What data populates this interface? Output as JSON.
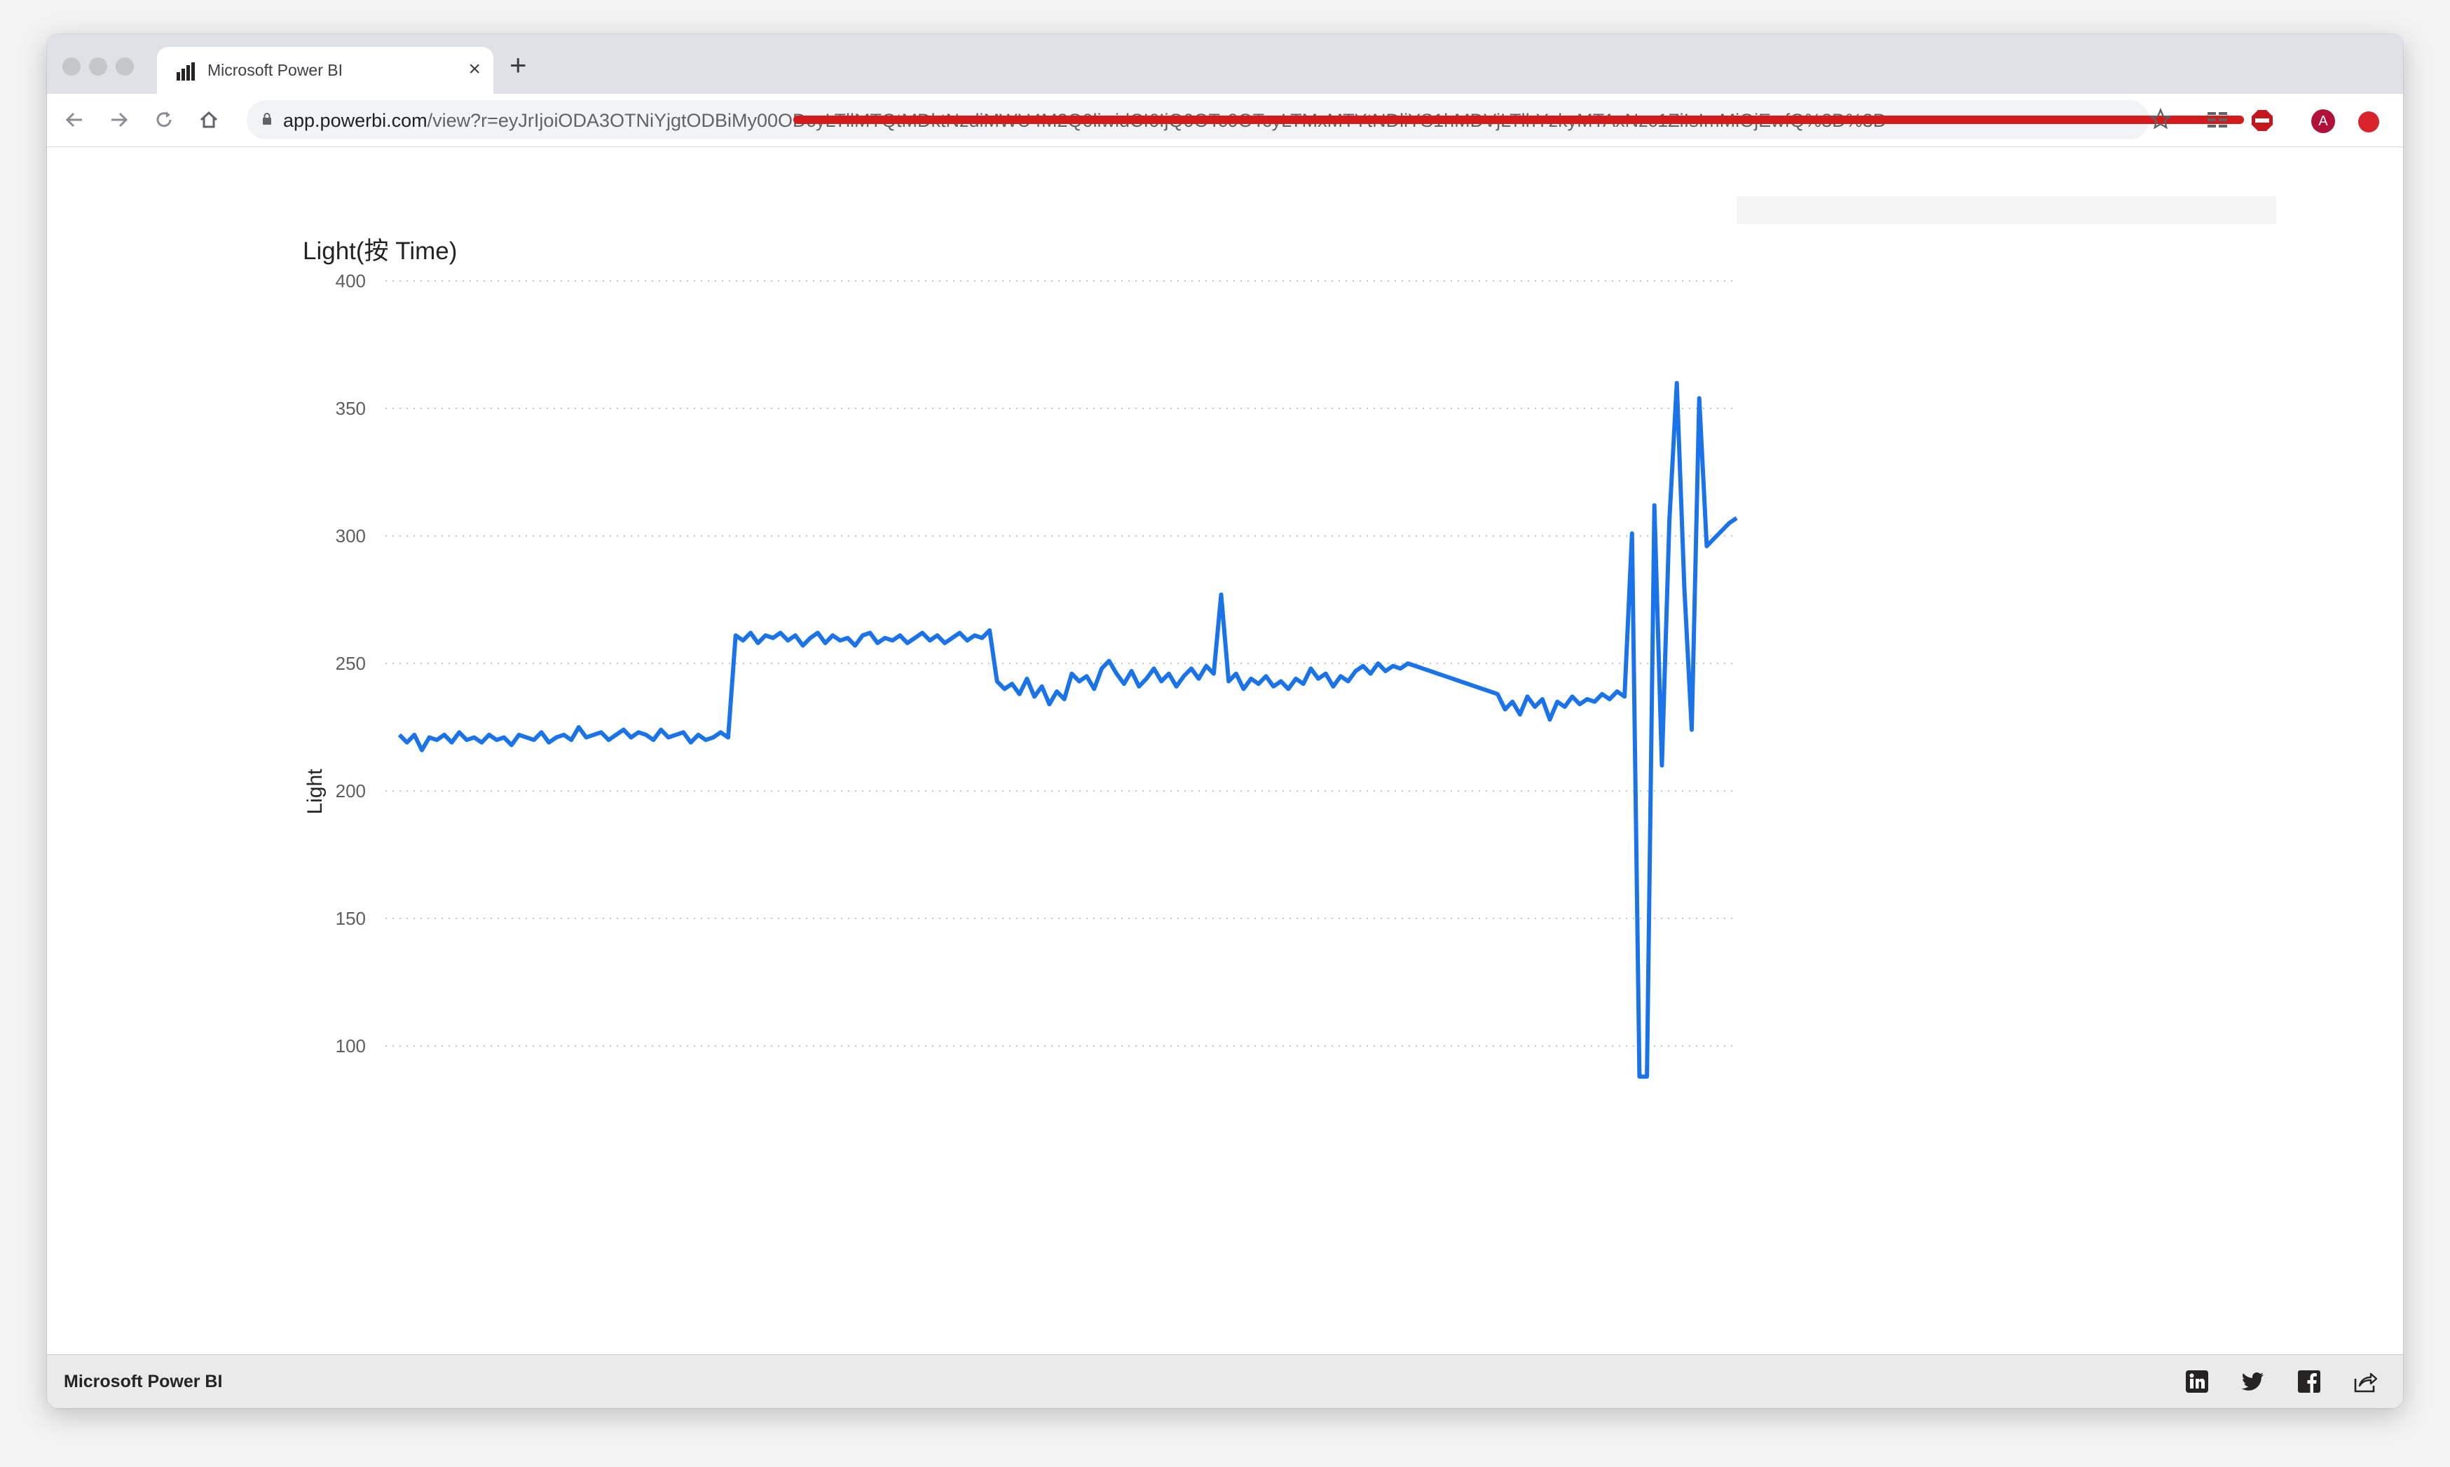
{
  "browser": {
    "tab_title": "Microsoft Power BI",
    "url_host": "app.powerbi.com",
    "url_path": "/view?r=eyJrIjoiODA3OTNiYjgtODBiMy00ODcyLTllMTQtMDktNzdiMWU4M2Q0liwidCI6IjQ0OTc0OTcyLTMxMTYtNDliYS1hMDVjLTlhYzkyMTAxNzc1ZiIsImMiOjEwfQ%3D%3D",
    "new_tab_symbol": "+",
    "close_symbol": "×",
    "avatar_letter": "A"
  },
  "footer": {
    "brand": "Microsoft Power BI"
  },
  "chart_data": {
    "type": "line",
    "title": "Light(按 Time)",
    "xlabel": "",
    "ylabel": "Light",
    "ylim": [
      100,
      400
    ],
    "yticks": [
      100,
      150,
      200,
      250,
      300,
      350,
      400
    ],
    "grid": true,
    "series_color": "#1a73e8",
    "series": [
      {
        "values": [
          222,
          219,
          222,
          216,
          221,
          220,
          222,
          219,
          223,
          220,
          221,
          219,
          222,
          220,
          221,
          218,
          222,
          221,
          220,
          223,
          219,
          221,
          222,
          220,
          225,
          221,
          222,
          223,
          220,
          222,
          224,
          221,
          223,
          222,
          220,
          224,
          221,
          222,
          223,
          219,
          222,
          220,
          221,
          223,
          221,
          261,
          259,
          262,
          258,
          261,
          260,
          262,
          259,
          261,
          257,
          260,
          262,
          258,
          261,
          259,
          260,
          257,
          261,
          262,
          258,
          260,
          259,
          261,
          258,
          260,
          262,
          259,
          261,
          258,
          260,
          262,
          259,
          261,
          260,
          263,
          243,
          240,
          242,
          238,
          244,
          237,
          241,
          234,
          239,
          236,
          246,
          243,
          245,
          240,
          248,
          251,
          246,
          242,
          247,
          241,
          244,
          248,
          243,
          246,
          241,
          245,
          248,
          244,
          249,
          246,
          277,
          243,
          246,
          240,
          244,
          242,
          245,
          241,
          243,
          240,
          244,
          242,
          248,
          244,
          246,
          241,
          245,
          243,
          247,
          249,
          246,
          250,
          247,
          249,
          248,
          250,
          249,
          248,
          247,
          246,
          245,
          244,
          243,
          242,
          241,
          240,
          239,
          238,
          232,
          235,
          230,
          237,
          233,
          236,
          228,
          235,
          233,
          237,
          234,
          236,
          235,
          238,
          236,
          239,
          237,
          301,
          88,
          88,
          312,
          210,
          306,
          360,
          280,
          224,
          354,
          296,
          299,
          302,
          305,
          307
        ]
      }
    ]
  }
}
